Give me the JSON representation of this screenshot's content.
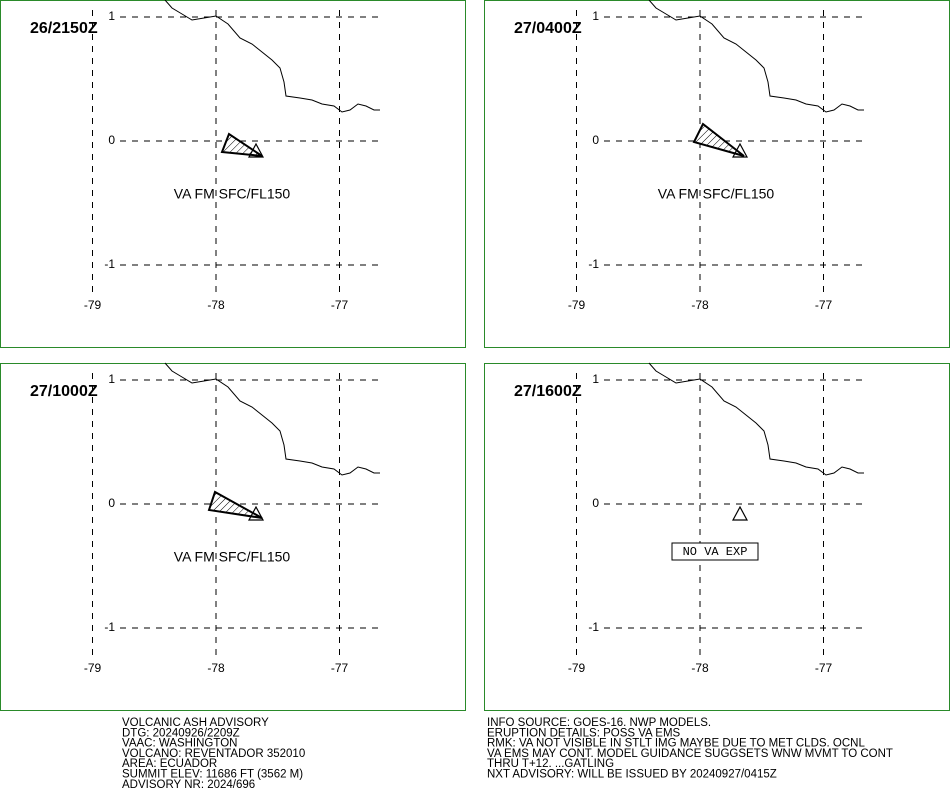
{
  "panels": [
    {
      "time": "26/2150Z",
      "lat_ticks": [
        1,
        0,
        -1
      ],
      "lon_ticks": [
        -79,
        -78,
        -77
      ],
      "label": "VA FM SFC/FL150"
    },
    {
      "time": "27/0400Z",
      "lat_ticks": [
        1,
        0,
        -1
      ],
      "lon_ticks": [
        -79,
        -78,
        -77
      ],
      "label": "VA FM SFC/FL150"
    },
    {
      "time": "27/1000Z",
      "lat_ticks": [
        1,
        0,
        -1
      ],
      "lon_ticks": [
        -79,
        -78,
        -77
      ],
      "label": "VA FM SFC/FL150"
    },
    {
      "time": "27/1600Z",
      "lat_ticks": [
        1,
        0,
        -1
      ],
      "lon_ticks": [
        -79,
        -78,
        -77
      ],
      "label": "NO VA EXP"
    }
  ],
  "advisory_left": [
    "VOLCANIC ASH ADVISORY",
    "DTG: 20240926/2209Z",
    "VAAC: WASHINGTON",
    "VOLCANO: REVENTADOR 352010",
    "AREA: ECUADOR",
    "SUMMIT ELEV: 11686 FT (3562 M)",
    "ADVISORY NR: 2024/696"
  ],
  "advisory_right": [
    "INFO SOURCE: GOES-16. NWP MODELS.",
    "ERUPTION DETAILS: POSS VA EMS",
    "RMK: VA NOT VISIBLE IN STLT IMG MAYBE DUE TO MET CLDS. OCNL",
    "VA EMS MAY CONT. MODEL GUIDANCE SUGGSETS WNW MVMT TO CONT",
    "THRU T+12. ...GATLING",
    "NXT ADVISORY: WILL BE ISSUED BY 20240927/0415Z"
  ]
}
